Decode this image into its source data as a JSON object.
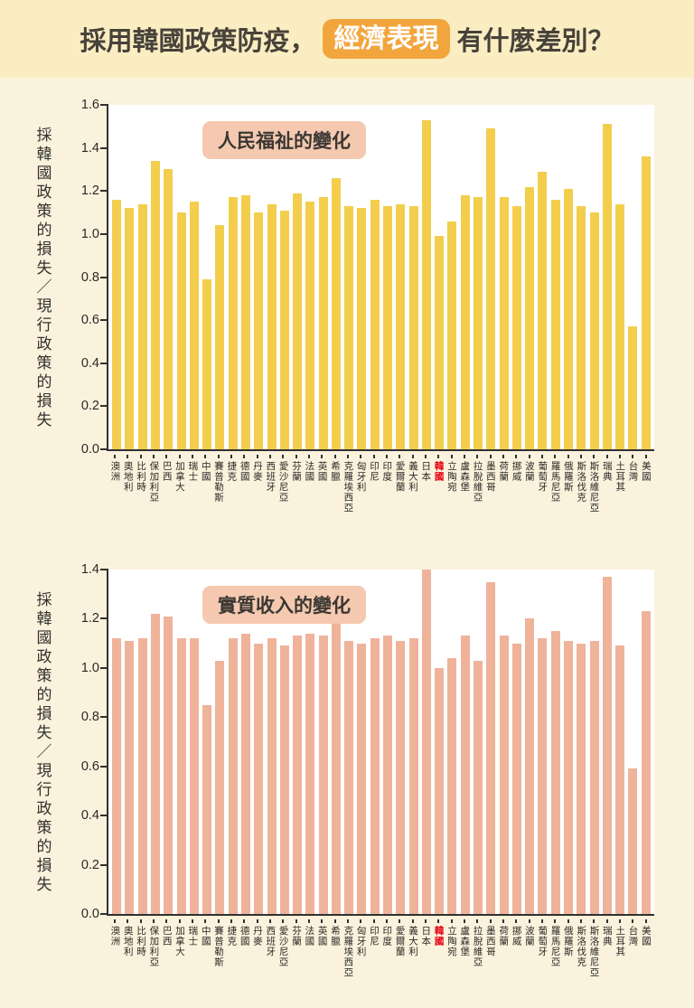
{
  "page_bg": "#FAF2DC",
  "header": {
    "bg": "#FBEDC2",
    "text_color": "#474239",
    "title_part1": "採用韓國政策防疫，",
    "highlight": "經濟表現",
    "title_part2": "有什麼差別？",
    "highlight_bg": "#F2A53C",
    "highlight_text_color": "#FFFFFF"
  },
  "highlight_country": "韓國",
  "highlight_country_color": "#E60012",
  "chart_data": [
    {
      "type": "bar",
      "title": "人民福祉的變化",
      "title_bg": "#F5C9B0",
      "bar_color": "#F3CE4D",
      "xlabel": "",
      "ylabel": "採韓國政策的損失／現行政策的損失",
      "ylim": [
        0,
        1.6
      ],
      "yticks": [
        "0.0",
        "0.2",
        "0.4",
        "0.6",
        "0.8",
        "1.0",
        "1.2",
        "1.4",
        "1.6"
      ],
      "grid": false,
      "legend": "none",
      "categories": [
        "澳洲",
        "奧地利",
        "比利時",
        "保加利亞",
        "巴西",
        "加拿大",
        "瑞士",
        "中國",
        "賽普勒斯",
        "捷克",
        "德國",
        "丹麥",
        "西班牙",
        "愛沙尼亞",
        "芬蘭",
        "法國",
        "英國",
        "希臘",
        "克羅埃西亞",
        "匈牙利",
        "印尼",
        "印度",
        "愛爾蘭",
        "義大利",
        "日本",
        "韓國",
        "立陶宛",
        "盧森堡",
        "拉脫維亞",
        "墨西哥",
        "荷蘭",
        "挪威",
        "波蘭",
        "葡萄牙",
        "羅馬尼亞",
        "俄羅斯",
        "斯洛伐克",
        "斯洛維尼亞",
        "瑞典",
        "土耳其",
        "台灣",
        "美國"
      ],
      "values": [
        1.16,
        1.12,
        1.14,
        1.34,
        1.3,
        1.1,
        1.15,
        0.79,
        1.04,
        1.17,
        1.18,
        1.1,
        1.14,
        1.11,
        1.19,
        1.15,
        1.17,
        1.26,
        1.13,
        1.12,
        1.16,
        1.13,
        1.14,
        1.13,
        1.53,
        0.99,
        1.06,
        1.18,
        1.17,
        1.49,
        1.17,
        1.13,
        1.22,
        1.29,
        1.16,
        1.21,
        1.13,
        1.1,
        1.51,
        1.14,
        0.57,
        1.36
      ]
    },
    {
      "type": "bar",
      "title": "實質收入的變化",
      "title_bg": "#F5C9B0",
      "bar_color": "#EFB39A",
      "xlabel": "",
      "ylabel": "採韓國政策的損失／現行政策的損失",
      "ylim": [
        0,
        1.4
      ],
      "yticks": [
        "0.0",
        "0.2",
        "0.4",
        "0.6",
        "0.8",
        "1.0",
        "1.2",
        "1.4"
      ],
      "grid": false,
      "legend": "none",
      "categories": [
        "澳洲",
        "奧地利",
        "比利時",
        "保加利亞",
        "巴西",
        "加拿大",
        "瑞士",
        "中國",
        "賽普勒斯",
        "捷克",
        "德國",
        "丹麥",
        "西班牙",
        "愛沙尼亞",
        "芬蘭",
        "法國",
        "英國",
        "希臘",
        "克羅埃西亞",
        "匈牙利",
        "印尼",
        "印度",
        "愛爾蘭",
        "義大利",
        "日本",
        "韓國",
        "立陶宛",
        "盧森堡",
        "拉脫維亞",
        "墨西哥",
        "荷蘭",
        "挪威",
        "波蘭",
        "葡萄牙",
        "羅馬尼亞",
        "俄羅斯",
        "斯洛伐克",
        "斯洛維尼亞",
        "瑞典",
        "土耳其",
        "台灣",
        "美國"
      ],
      "values": [
        1.12,
        1.11,
        1.12,
        1.22,
        1.21,
        1.12,
        1.12,
        0.85,
        1.03,
        1.12,
        1.14,
        1.1,
        1.12,
        1.09,
        1.13,
        1.14,
        1.13,
        1.2,
        1.11,
        1.1,
        1.12,
        1.13,
        1.11,
        1.12,
        1.4,
        1.0,
        1.04,
        1.13,
        1.03,
        1.35,
        1.13,
        1.1,
        1.2,
        1.12,
        1.15,
        1.11,
        1.1,
        1.11,
        1.37,
        1.09,
        0.59,
        1.23
      ]
    }
  ]
}
